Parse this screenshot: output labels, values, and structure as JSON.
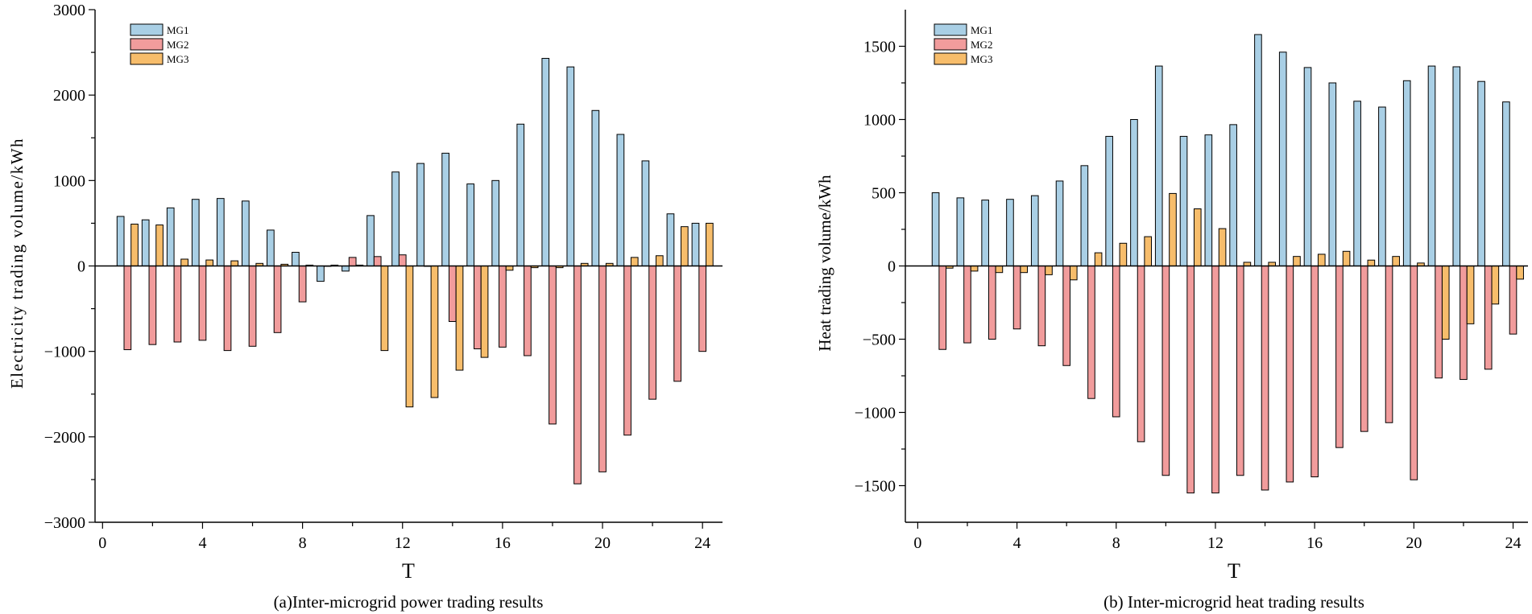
{
  "series_colors": {
    "MG1": "#a9cfe5",
    "MG2": "#f19c9c",
    "MG3": "#f7bd6b"
  },
  "chart_data": [
    {
      "id": "power",
      "type": "bar",
      "title": "(a)Inter-microgrid power trading results",
      "xlabel": "T",
      "ylabel": "Electricity trading volume/kWh",
      "ylim": [
        -3000,
        3000
      ],
      "yticks": [
        -3000,
        -2000,
        -1000,
        0,
        1000,
        2000,
        3000
      ],
      "ytick_labels": [
        "−3000",
        "−2000",
        "−1000",
        "0",
        "1000",
        "2000",
        "3000"
      ],
      "xlim": [
        -0.3,
        24.8
      ],
      "xticks": [
        0,
        4,
        8,
        12,
        16,
        20,
        24
      ],
      "xtick_labels": [
        "0",
        "4",
        "8",
        "12",
        "16",
        "20",
        "24"
      ],
      "legend": [
        "MG1",
        "MG2",
        "MG3"
      ],
      "legend_position": "top-left",
      "categories": [
        1,
        2,
        3,
        4,
        5,
        6,
        7,
        8,
        9,
        10,
        11,
        12,
        13,
        14,
        15,
        16,
        17,
        18,
        19,
        20,
        21,
        22,
        23,
        24
      ],
      "series": [
        {
          "name": "MG1",
          "values": [
            580,
            540,
            680,
            780,
            790,
            760,
            420,
            160,
            -180,
            -60,
            590,
            1100,
            1200,
            1320,
            960,
            1000,
            1660,
            2430,
            2330,
            1820,
            1540,
            1230,
            610,
            500
          ]
        },
        {
          "name": "MG2",
          "values": [
            -980,
            -920,
            -890,
            -870,
            -990,
            -940,
            -780,
            -420,
            0,
            100,
            110,
            130,
            0,
            -650,
            -970,
            -950,
            -1050,
            -1850,
            -2550,
            -2410,
            -1980,
            -1560,
            -1350,
            -1000
          ]
        },
        {
          "name": "MG3",
          "values": [
            490,
            480,
            80,
            70,
            60,
            30,
            20,
            10,
            10,
            10,
            -990,
            -1650,
            -1540,
            -1220,
            -1070,
            -50,
            -20,
            -20,
            30,
            30,
            100,
            120,
            460,
            500
          ]
        }
      ]
    },
    {
      "id": "heat",
      "type": "bar",
      "title": "(b) Inter-microgrid heat trading results",
      "xlabel": "T",
      "ylabel": "Heat trading volume/kWh",
      "ylim": [
        -1750,
        1750
      ],
      "yticks": [
        -1500,
        -1000,
        -500,
        0,
        500,
        1000,
        1500
      ],
      "ytick_labels": [
        "−1500",
        "−1000",
        "−500",
        "0",
        "500",
        "1000",
        "1500"
      ],
      "xlim": [
        -0.5,
        24.6
      ],
      "xticks": [
        0,
        4,
        8,
        12,
        16,
        20,
        24
      ],
      "xtick_labels": [
        "0",
        "4",
        "8",
        "12",
        "16",
        "20",
        "24"
      ],
      "legend": [
        "MG1",
        "MG2",
        "MG3"
      ],
      "legend_position": "top-left",
      "categories": [
        1,
        2,
        3,
        4,
        5,
        6,
        7,
        8,
        9,
        10,
        11,
        12,
        13,
        14,
        15,
        16,
        17,
        18,
        19,
        20,
        21,
        22,
        23,
        24
      ],
      "series": [
        {
          "name": "MG1",
          "values": [
            500,
            465,
            450,
            455,
            480,
            580,
            685,
            885,
            1000,
            1365,
            885,
            895,
            965,
            1580,
            1460,
            1355,
            1250,
            1125,
            1085,
            1265,
            1365,
            1360,
            1260,
            1120
          ]
        },
        {
          "name": "MG2",
          "values": [
            -570,
            -525,
            -500,
            -430,
            -545,
            -680,
            -905,
            -1030,
            -1200,
            -1430,
            -1550,
            -1550,
            -1430,
            -1530,
            -1475,
            -1440,
            -1240,
            -1130,
            -1070,
            -1460,
            -765,
            -775,
            -705,
            -465
          ]
        },
        {
          "name": "MG3",
          "values": [
            -15,
            -35,
            -45,
            -45,
            -60,
            -95,
            90,
            155,
            200,
            495,
            390,
            255,
            25,
            25,
            65,
            80,
            100,
            40,
            65,
            20,
            -500,
            -395,
            -260,
            -90
          ]
        }
      ]
    }
  ]
}
